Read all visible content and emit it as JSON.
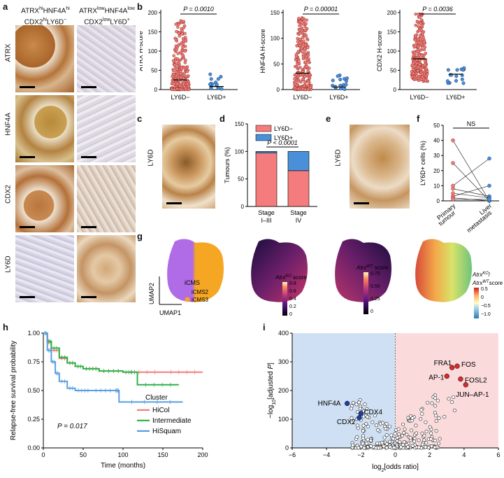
{
  "panel_letters": {
    "a": "a",
    "b": "b",
    "c": "c",
    "d": "d",
    "e": "e",
    "f": "f",
    "g": "g",
    "h": "h",
    "i": "i"
  },
  "panel_a": {
    "col1": "ATRX^hi HNF4A^hi CDX2^hi LY6D^−",
    "col2": "ATRX^low HNF4A^low CDX2^low LY6D^+",
    "rows": [
      "ATRX",
      "HNF4A",
      "CDX2",
      "LY6D"
    ]
  },
  "colors": {
    "ly6d_neg": "#f47c7c",
    "ly6d_pos": "#4a90d9",
    "brown": "#a0652c",
    "hicol": "#f47c7c",
    "intermediate": "#2fb34a",
    "hisquam": "#5b9ee0"
  },
  "chart_data": [
    {
      "type": "scatter",
      "panel": "b",
      "ylabel": "ATRX H-score",
      "ylim": [
        0,
        200
      ],
      "yticks": [
        0,
        50,
        100,
        150,
        200
      ],
      "categories": [
        "LY6D−",
        "LY6D+"
      ],
      "pvalue": "P = 0.0010",
      "medians": [
        25,
        8
      ]
    },
    {
      "type": "scatter",
      "panel": "b",
      "ylabel": "HNF4A H-score",
      "ylim": [
        0,
        150
      ],
      "yticks": [
        0,
        50,
        100,
        150
      ],
      "categories": [
        "LY6D−",
        "LY6D+"
      ],
      "pvalue": "P = 0.00001",
      "medians": [
        32,
        5
      ]
    },
    {
      "type": "scatter",
      "panel": "b",
      "ylabel": "CDX2 H-score",
      "ylim": [
        0,
        200
      ],
      "yticks": [
        0,
        50,
        100,
        150,
        200
      ],
      "categories": [
        "LY6D−",
        "LY6D+"
      ],
      "pvalue": "P = 0.0036",
      "medians": [
        80,
        40
      ]
    },
    {
      "type": "bar",
      "panel": "d",
      "ylabel": "Tumours (%)",
      "ylim": [
        0,
        150
      ],
      "yticks": [
        0,
        50,
        100,
        150
      ],
      "categories": [
        "Stage I–III",
        "Stage IV"
      ],
      "series": [
        {
          "name": "LY6D−",
          "values": [
            97,
            65
          ]
        },
        {
          "name": "LY6D+",
          "values": [
            3,
            35
          ]
        }
      ],
      "pvalue": "P < 0.0001"
    },
    {
      "type": "line",
      "panel": "f",
      "ylabel": "LY6D+ cells (%)",
      "ylim": [
        0,
        50
      ],
      "yticks": [
        0,
        10,
        20,
        30,
        40,
        50
      ],
      "categories": [
        "Primary tumour",
        "Liver metastasis"
      ],
      "annotation": "NS",
      "pairs": [
        [
          40,
          0
        ],
        [
          25,
          0
        ],
        [
          10,
          28
        ],
        [
          8,
          3
        ],
        [
          5,
          2
        ],
        [
          3,
          10
        ],
        [
          2,
          0
        ],
        [
          1,
          1
        ]
      ]
    },
    {
      "type": "line",
      "panel": "h",
      "xlabel": "Time (months)",
      "ylabel": "Relapse-free survival probability",
      "xlim": [
        0,
        200
      ],
      "ylim": [
        0,
        1
      ],
      "xticks": [
        0,
        50,
        100,
        150,
        200
      ],
      "yticks": [
        0,
        0.25,
        0.5,
        0.75,
        1.0
      ],
      "legend_title": "Cluster",
      "pvalue": "P = 0.017",
      "series": [
        {
          "name": "HiCol",
          "x": [
            0,
            5,
            10,
            20,
            30,
            40,
            50,
            70,
            100,
            150,
            200
          ],
          "y": [
            1,
            0.92,
            0.85,
            0.78,
            0.74,
            0.71,
            0.69,
            0.67,
            0.66,
            0.66,
            0.66
          ]
        },
        {
          "name": "Intermediate",
          "x": [
            0,
            5,
            10,
            20,
            30,
            40,
            50,
            70,
            100,
            118,
            170
          ],
          "y": [
            1,
            0.93,
            0.87,
            0.79,
            0.74,
            0.71,
            0.69,
            0.67,
            0.66,
            0.55,
            0.55
          ]
        },
        {
          "name": "HiSquam",
          "x": [
            0,
            5,
            10,
            15,
            20,
            30,
            40,
            60,
            90,
            95,
            175
          ],
          "y": [
            1,
            0.85,
            0.75,
            0.65,
            0.58,
            0.52,
            0.5,
            0.5,
            0.5,
            0.4,
            0.4
          ]
        }
      ]
    },
    {
      "type": "scatter",
      "panel": "i",
      "xlabel": "log2[odds ratio]",
      "ylabel": "−log10[adjusted P]",
      "xlim": [
        -6,
        6
      ],
      "ylim": [
        0,
        400
      ],
      "xticks": [
        -6,
        -4,
        -2,
        0,
        2,
        4,
        6
      ],
      "yticks": [
        0,
        100,
        200,
        300,
        400
      ],
      "labels": [
        {
          "name": "FRA1",
          "x": 3.3,
          "y": 280,
          "group": "up"
        },
        {
          "name": "FOS",
          "x": 3.6,
          "y": 285,
          "group": "up"
        },
        {
          "name": "AP-1",
          "x": 3.0,
          "y": 250,
          "group": "up"
        },
        {
          "name": "FOSL2",
          "x": 3.8,
          "y": 240,
          "group": "up"
        },
        {
          "name": "JUN–AP-1",
          "x": 4.1,
          "y": 220,
          "group": "up"
        },
        {
          "name": "HNF4A",
          "x": -2.8,
          "y": 155,
          "group": "down"
        },
        {
          "name": "CDX2",
          "x": -2.1,
          "y": 105,
          "group": "down"
        },
        {
          "name": "CDX4",
          "x": -2.0,
          "y": 120,
          "group": "down"
        }
      ]
    }
  ],
  "panel_g": {
    "umap1": "UMAP1",
    "umap2": "UMAP2",
    "legend_title": "iCMS",
    "legend": [
      "iCMS2",
      "iCMS3"
    ],
    "atrx_ko": "AtrxKO score",
    "atrx_ko_ticks": [
      "0.8",
      "0.6",
      "0.4",
      "0.2",
      "0"
    ],
    "atrx_wt": "AtrxWT score",
    "atrx_wt_ticks": [
      "0.75",
      "0.50",
      "0.25",
      "0"
    ],
    "ratio": "AtrxKO/ AtrxWT score",
    "ratio_ticks": [
      "0.5",
      "0",
      "−0.5",
      "−1.0"
    ]
  },
  "panel_c_label": "LY6D",
  "panel_e_label": "LY6D",
  "panel_d_legend": [
    "LY6D−",
    "LY6D+"
  ],
  "panel_f_ns": "NS"
}
